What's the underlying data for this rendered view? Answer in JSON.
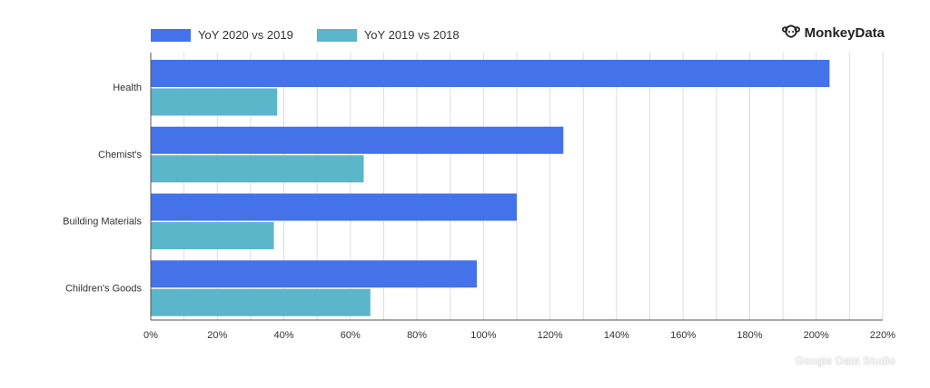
{
  "brand": {
    "name": "MonkeyData",
    "icon": "monkey-icon"
  },
  "watermark": "Google Data Studio",
  "colors": {
    "series1": "#4472e8",
    "series2": "#5cb6c9",
    "grid": "#dddddd",
    "axis": "#555555"
  },
  "chart_data": {
    "type": "bar",
    "orientation": "horizontal",
    "categories": [
      "Health",
      "Chemist's",
      "Building Materials",
      "Children's Goods"
    ],
    "series": [
      {
        "name": "YoY 2020 vs 2019",
        "values": [
          204,
          124,
          110,
          98
        ]
      },
      {
        "name": "YoY 2019 vs 2018",
        "values": [
          38,
          64,
          37,
          66
        ]
      }
    ],
    "xlim": [
      0,
      220
    ],
    "xticks": [
      0,
      20,
      40,
      60,
      80,
      100,
      120,
      140,
      160,
      180,
      200,
      220
    ],
    "tick_format": "%",
    "grid": true,
    "legend_position": "top-left"
  }
}
